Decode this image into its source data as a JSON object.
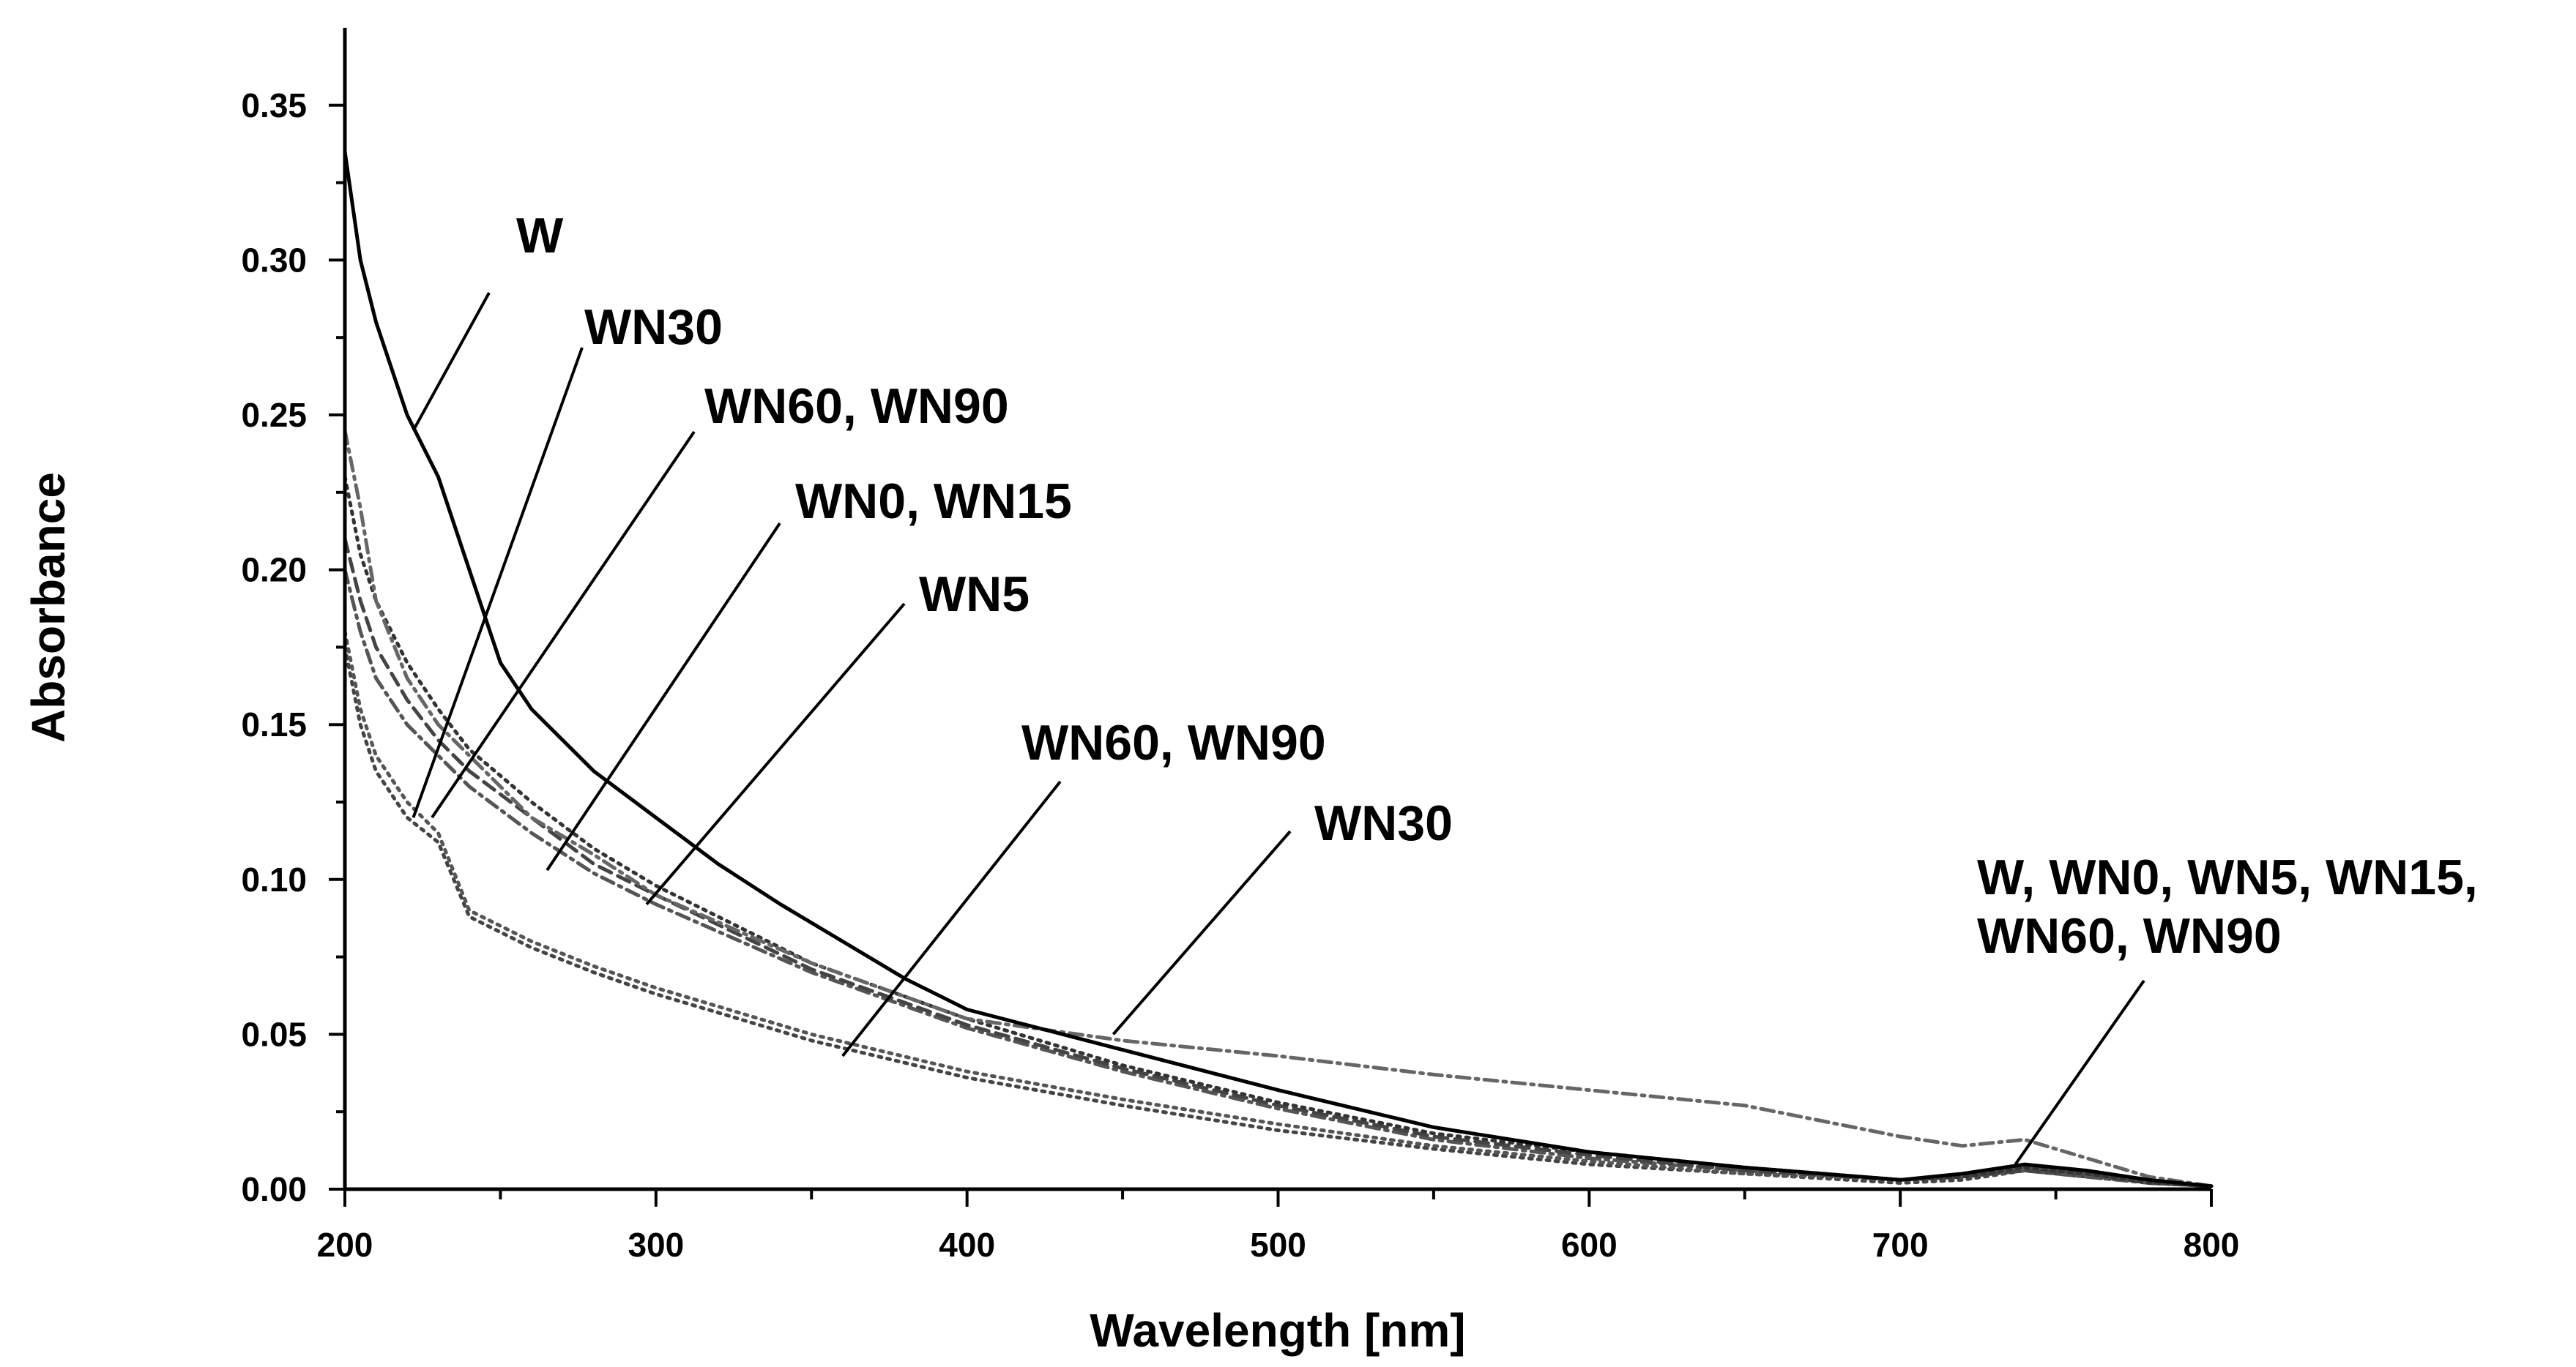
{
  "chart_data": {
    "type": "line",
    "title": "",
    "xlabel": "Wavelength [nm]",
    "ylabel": "Absorbance",
    "xlim": [
      200,
      800
    ],
    "ylim": [
      0,
      0.375
    ],
    "x_ticks": [
      200,
      300,
      400,
      500,
      600,
      700,
      800
    ],
    "y_ticks": [
      0.0,
      0.05,
      0.1,
      0.15,
      0.2,
      0.25,
      0.3,
      0.35
    ],
    "x_tick_labels": [
      "200",
      "300",
      "400",
      "500",
      "600",
      "700",
      "800"
    ],
    "y_tick_labels": [
      "0.00",
      "0.05",
      "0.10",
      "0.15",
      "0.20",
      "0.25",
      "0.30",
      "0.35"
    ],
    "grid": false,
    "series": [
      {
        "name": "W",
        "color": "#000000",
        "style": "solid",
        "x": [
          200,
          205,
          210,
          220,
          230,
          240,
          250,
          260,
          280,
          300,
          320,
          340,
          360,
          380,
          400,
          450,
          500,
          550,
          600,
          650,
          700,
          720,
          740,
          760,
          780,
          800
        ],
        "y": [
          0.335,
          0.3,
          0.28,
          0.25,
          0.23,
          0.2,
          0.17,
          0.155,
          0.135,
          0.12,
          0.105,
          0.092,
          0.08,
          0.068,
          0.058,
          0.045,
          0.032,
          0.02,
          0.012,
          0.007,
          0.003,
          0.005,
          0.008,
          0.006,
          0.003,
          0.001
        ]
      },
      {
        "name": "WN30",
        "color": "#666666",
        "style": "dashdot",
        "x": [
          200,
          205,
          210,
          220,
          230,
          240,
          260,
          280,
          300,
          350,
          400,
          450,
          500,
          550,
          600,
          650,
          700,
          720,
          740,
          760,
          780,
          800
        ],
        "y": [
          0.245,
          0.22,
          0.19,
          0.165,
          0.15,
          0.14,
          0.12,
          0.108,
          0.095,
          0.073,
          0.055,
          0.048,
          0.043,
          0.037,
          0.032,
          0.027,
          0.017,
          0.014,
          0.016,
          0.01,
          0.004,
          0.001
        ]
      },
      {
        "name": "WN0",
        "color": "#333333",
        "style": "dotted",
        "x": [
          200,
          205,
          210,
          220,
          230,
          240,
          260,
          280,
          300,
          350,
          400,
          450,
          500,
          550,
          600,
          650,
          700,
          720,
          740,
          760,
          780,
          800
        ],
        "y": [
          0.23,
          0.205,
          0.19,
          0.17,
          0.155,
          0.142,
          0.125,
          0.11,
          0.098,
          0.073,
          0.055,
          0.04,
          0.028,
          0.018,
          0.012,
          0.007,
          0.003,
          0.004,
          0.007,
          0.005,
          0.002,
          0.001
        ]
      },
      {
        "name": "WN15",
        "color": "#444444",
        "style": "dashed",
        "x": [
          200,
          205,
          210,
          220,
          230,
          240,
          260,
          280,
          300,
          350,
          400,
          450,
          500,
          550,
          600,
          650,
          700,
          720,
          740,
          760,
          780,
          800
        ],
        "y": [
          0.21,
          0.19,
          0.175,
          0.158,
          0.145,
          0.135,
          0.12,
          0.105,
          0.095,
          0.071,
          0.053,
          0.039,
          0.027,
          0.017,
          0.011,
          0.006,
          0.003,
          0.004,
          0.006,
          0.005,
          0.002,
          0.001
        ]
      },
      {
        "name": "WN5",
        "color": "#555555",
        "style": "dashdot",
        "x": [
          200,
          205,
          210,
          220,
          230,
          240,
          260,
          280,
          300,
          350,
          400,
          450,
          500,
          550,
          600,
          650,
          700,
          720,
          740,
          760,
          780,
          800
        ],
        "y": [
          0.2,
          0.18,
          0.165,
          0.15,
          0.14,
          0.13,
          0.115,
          0.102,
          0.092,
          0.07,
          0.052,
          0.038,
          0.026,
          0.016,
          0.01,
          0.006,
          0.003,
          0.004,
          0.006,
          0.004,
          0.002,
          0.001
        ]
      },
      {
        "name": "WN60",
        "color": "#555555",
        "style": "dotted",
        "x": [
          200,
          205,
          210,
          220,
          230,
          240,
          260,
          280,
          300,
          350,
          400,
          450,
          500,
          550,
          600,
          650,
          700,
          720,
          740,
          760,
          780,
          800
        ],
        "y": [
          0.18,
          0.155,
          0.14,
          0.125,
          0.115,
          0.09,
          0.08,
          0.072,
          0.065,
          0.05,
          0.038,
          0.029,
          0.021,
          0.014,
          0.009,
          0.005,
          0.003,
          0.004,
          0.007,
          0.005,
          0.002,
          0.001
        ]
      },
      {
        "name": "WN90",
        "color": "#444444",
        "style": "dotted",
        "x": [
          200,
          205,
          210,
          220,
          230,
          240,
          260,
          280,
          300,
          350,
          400,
          450,
          500,
          550,
          600,
          650,
          700,
          720,
          740,
          760,
          780,
          800
        ],
        "y": [
          0.175,
          0.15,
          0.135,
          0.12,
          0.112,
          0.088,
          0.078,
          0.07,
          0.063,
          0.048,
          0.036,
          0.027,
          0.019,
          0.013,
          0.008,
          0.005,
          0.002,
          0.003,
          0.006,
          0.004,
          0.002,
          0.001
        ]
      }
    ],
    "annotations": [
      {
        "lines": [
          "W"
        ],
        "target": [
          222,
          0.245
        ]
      },
      {
        "lines": [
          "WN30"
        ],
        "target": [
          222,
          0.12
        ]
      },
      {
        "lines": [
          "WN60, WN90"
        ],
        "target": [
          228,
          0.12
        ]
      },
      {
        "lines": [
          "WN0, WN15"
        ],
        "target": [
          265,
          0.103
        ]
      },
      {
        "lines": [
          "WN5"
        ],
        "target": [
          297,
          0.092
        ]
      },
      {
        "lines": [
          "WN60, WN90"
        ],
        "target": [
          360,
          0.043
        ]
      },
      {
        "lines": [
          "WN30"
        ],
        "target": [
          447,
          0.05
        ]
      },
      {
        "lines": [
          "W, WN0, WN5, WN15,",
          "WN60, WN90"
        ],
        "target": [
          737,
          0.008
        ]
      }
    ]
  }
}
